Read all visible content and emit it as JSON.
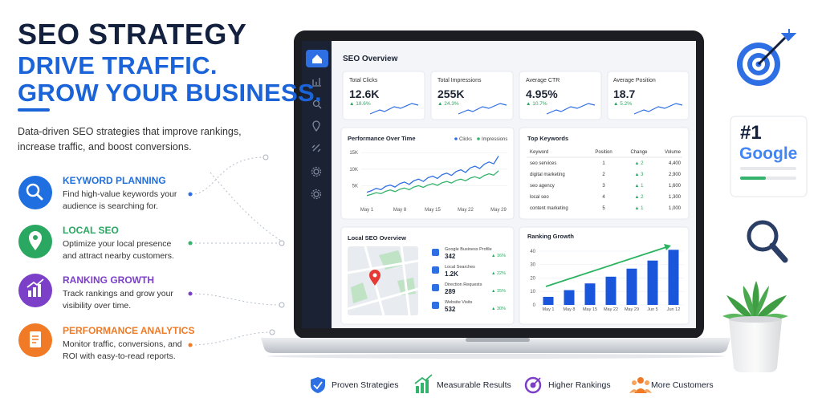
{
  "header": {
    "title": "SEO STRATEGY",
    "subtitle_1": "DRIVE TRAFFIC.",
    "subtitle_2": "GROW YOUR BUSINESS.",
    "description": "Data-driven SEO strategies that improve rankings, increase traffic, and boost conversions."
  },
  "features": [
    {
      "title": "KEYWORD PLANNING",
      "text": "Find high-value keywords your audience is searching for."
    },
    {
      "title": "LOCAL SEO",
      "text": "Optimize your local presence and attract nearby customers."
    },
    {
      "title": "RANKING GROWTH",
      "text": "Track rankings and grow your visibility over time."
    },
    {
      "title": "PERFORMANCE ANALYTICS",
      "text": "Monitor traffic, conversions, and ROI with easy-to-read reports."
    }
  ],
  "dashboard": {
    "title": "SEO Overview",
    "kpis": [
      {
        "label": "Total Clicks",
        "value": "12.6K",
        "change": "▲ 18.6%"
      },
      {
        "label": "Total Impressions",
        "value": "255K",
        "change": "▲ 24.3%"
      },
      {
        "label": "Average CTR",
        "value": "4.95%",
        "change": "▲ 10.7%"
      },
      {
        "label": "Average Position",
        "value": "18.7",
        "change": "▲ 5.2%"
      }
    ],
    "performance": {
      "chart_data": {
        "type": "line",
        "title": "Performance Over Time",
        "categories": [
          "May 1",
          null,
          null,
          null,
          null,
          null,
          null,
          "May 8",
          null,
          null,
          null,
          null,
          null,
          null,
          "May 15",
          null,
          null,
          null,
          null,
          null,
          null,
          "May 22",
          null,
          null,
          null,
          null,
          null,
          null,
          "May 29"
        ],
        "series": [
          {
            "name": "Clicks",
            "color": "#2f6fe4",
            "values": [
              3000,
              3500,
              4200,
              3800,
              4800,
              5200,
              4600,
              5600,
              6100,
              5400,
              6500,
              7000,
              6300,
              7400,
              7900,
              7200,
              8300,
              8800,
              8100,
              9300,
              9800,
              9000,
              10400,
              10900,
              10200,
              11500,
              12200,
              11600,
              14000
            ]
          },
          {
            "name": "Impressions",
            "color": "#33b36b",
            "values": [
              2000,
              2400,
              2900,
              2600,
              3300,
              3700,
              3200,
              3900,
              4300,
              3800,
              4600,
              5000,
              4500,
              5200,
              5600,
              5100,
              5900,
              6300,
              5800,
              6600,
              7000,
              6500,
              7300,
              7700,
              7200,
              8100,
              8600,
              8200,
              9500
            ]
          }
        ],
        "ylim": [
          0,
          17000
        ],
        "yticks": [
          {
            "value": 5000,
            "label": "5K"
          },
          {
            "value": 10000,
            "label": "10K"
          },
          {
            "value": 15000,
            "label": "15K"
          }
        ],
        "grid": true
      }
    },
    "top_keywords": {
      "title": "Top Keywords",
      "columns": [
        "Keyword",
        "Position",
        "Change",
        "Volume"
      ],
      "rows": [
        [
          "seo services",
          "1",
          "▲ 2",
          "4,400"
        ],
        [
          "digital marketing",
          "2",
          "▲ 3",
          "2,900"
        ],
        [
          "seo agency",
          "3",
          "▲ 1",
          "1,600"
        ],
        [
          "local seo",
          "4",
          "▲ 2",
          "1,300"
        ],
        [
          "content marketing",
          "5",
          "▲ 1",
          "1,000"
        ]
      ]
    },
    "local_seo": {
      "title": "Local SEO Overview",
      "items": [
        {
          "label": "Google Business Profile",
          "value": "342",
          "change": "▲ 16%"
        },
        {
          "label": "Local Searches",
          "value": "1.2K",
          "change": "▲ 22%"
        },
        {
          "label": "Direction Requests",
          "value": "289",
          "change": "▲ 15%"
        },
        {
          "label": "Website Visits",
          "value": "532",
          "change": "▲ 30%"
        }
      ]
    },
    "ranking": {
      "chart_data": {
        "type": "bar",
        "title": "Ranking Growth",
        "categories": [
          "May 1",
          "May 8",
          "May 15",
          "May 22",
          "May 29",
          "Jun 5",
          "Jun 12"
        ],
        "values": [
          6,
          11,
          16,
          21,
          27,
          33,
          41
        ],
        "color": "#1a56db",
        "ylim": [
          0,
          45
        ],
        "yticks": [
          0,
          10,
          20,
          30,
          40
        ],
        "grid": true
      }
    }
  },
  "badge": {
    "rank": "#1",
    "brand": "Google"
  },
  "footer": [
    "Proven Strategies",
    "Measurable Results",
    "Higher Rankings",
    "More Customers"
  ]
}
